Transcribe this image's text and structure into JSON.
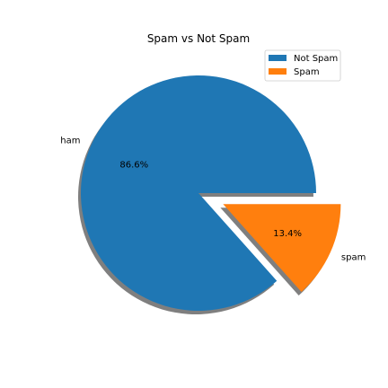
{
  "chart_data": {
    "type": "pie",
    "title": "Spam vs Not Spam",
    "slices": [
      {
        "label": "ham",
        "value": 86.6,
        "pct_label": "86.6%",
        "color": "#1f77b4",
        "explode": false
      },
      {
        "label": "spam",
        "value": 13.4,
        "pct_label": "13.4%",
        "color": "#ff7f0e",
        "explode": true
      }
    ],
    "legend": {
      "position": "top-right",
      "entries": [
        {
          "name": "Not Spam",
          "color": "#1f77b4"
        },
        {
          "name": "Spam",
          "color": "#ff7f0e"
        }
      ]
    },
    "shadow": true
  }
}
